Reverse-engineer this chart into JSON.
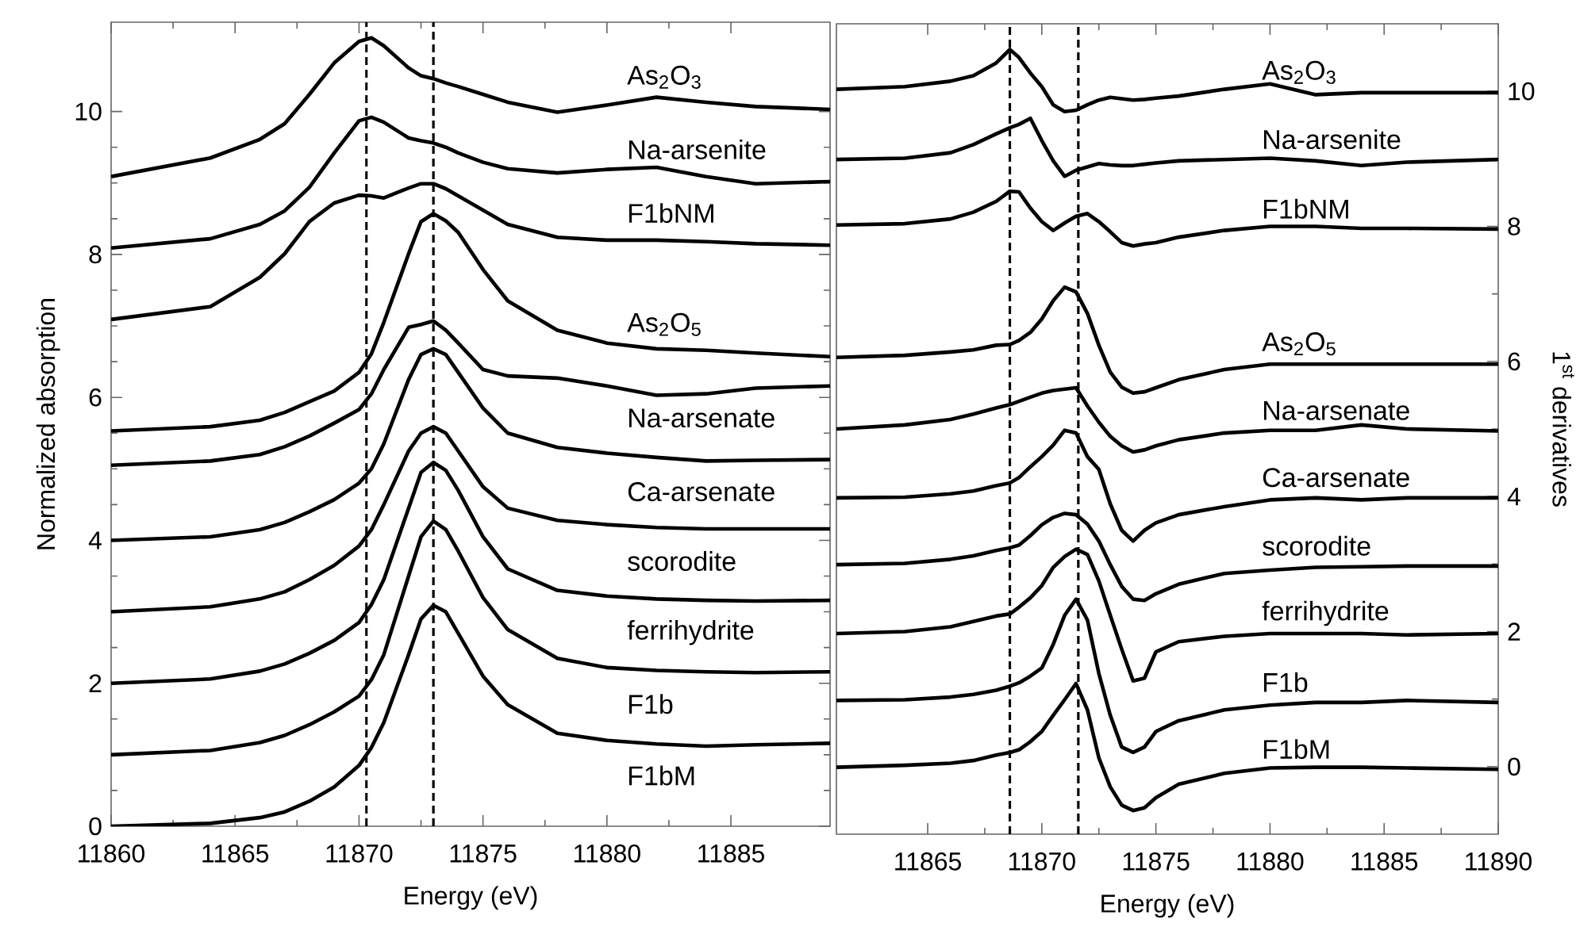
{
  "chart_data": [
    {
      "type": "line",
      "xlabel": "Energy (eV)",
      "ylabel": "Normalized absorption",
      "xlim": [
        11860,
        11889
      ],
      "ylim": [
        0,
        11.25
      ],
      "xticks": [
        11860,
        11865,
        11870,
        11875,
        11880,
        11885
      ],
      "yticks": [
        0,
        2,
        4,
        6,
        8,
        10
      ],
      "ref_lines": [
        {
          "axis": "x",
          "value": 11870.3,
          "line_style": "dashed",
          "color": "#000000"
        },
        {
          "axis": "x",
          "value": 11873.0,
          "line_style": "dashed",
          "color": "#000000"
        }
      ],
      "x": [
        11860,
        11864,
        11866,
        11867,
        11868,
        11869,
        11870,
        11870.5,
        11871,
        11872,
        11872.5,
        11873,
        11873.5,
        11874,
        11875,
        11876,
        11878,
        11880,
        11882,
        11884,
        11886,
        11889
      ],
      "series": [
        {
          "name": "As$_{2}$O$_{3}$",
          "color": "#000000",
          "values": [
            9.09,
            9.35,
            9.61,
            9.83,
            10.24,
            10.68,
            10.98,
            11.03,
            10.92,
            10.61,
            10.5,
            10.46,
            10.4,
            10.35,
            10.24,
            10.13,
            9.99,
            10.09,
            10.2,
            10.13,
            10.07,
            10.03
          ]
        },
        {
          "name": "Na-arsenite",
          "color": "#000000",
          "values": [
            8.09,
            8.22,
            8.42,
            8.61,
            8.94,
            9.42,
            9.87,
            9.92,
            9.85,
            9.63,
            9.59,
            9.56,
            9.5,
            9.42,
            9.29,
            9.2,
            9.14,
            9.19,
            9.22,
            9.09,
            8.99,
            9.02
          ]
        },
        {
          "name": "F1bNM",
          "color": "#000000",
          "values": [
            7.09,
            7.27,
            7.68,
            8.01,
            8.46,
            8.72,
            8.83,
            8.82,
            8.79,
            8.93,
            8.99,
            8.99,
            8.92,
            8.82,
            8.62,
            8.42,
            8.24,
            8.2,
            8.2,
            8.18,
            8.15,
            8.13
          ]
        },
        {
          "name": "As$_{2}$O$_{5}$",
          "color": "#000000",
          "values": [
            5.53,
            5.59,
            5.68,
            5.79,
            5.94,
            6.09,
            6.35,
            6.61,
            7.05,
            8.01,
            8.46,
            8.57,
            8.47,
            8.31,
            7.79,
            7.35,
            6.94,
            6.76,
            6.68,
            6.66,
            6.62,
            6.57
          ]
        },
        {
          "name": "Na-arsenate",
          "color": "#000000",
          "values": [
            5.05,
            5.11,
            5.2,
            5.31,
            5.46,
            5.64,
            5.83,
            6.05,
            6.39,
            6.98,
            7.02,
            7.07,
            6.94,
            6.76,
            6.39,
            6.3,
            6.27,
            6.16,
            6.03,
            6.05,
            6.13,
            6.16
          ]
        },
        {
          "name": "Ca-arsenate",
          "color": "#000000",
          "values": [
            4.0,
            4.05,
            4.15,
            4.25,
            4.4,
            4.57,
            4.8,
            5.0,
            5.35,
            6.25,
            6.6,
            6.68,
            6.6,
            6.35,
            5.85,
            5.5,
            5.3,
            5.22,
            5.16,
            5.11,
            5.12,
            5.13
          ]
        },
        {
          "name": "scorodite",
          "color": "#000000",
          "values": [
            3.0,
            3.07,
            3.18,
            3.28,
            3.45,
            3.65,
            3.92,
            4.15,
            4.5,
            5.25,
            5.5,
            5.59,
            5.5,
            5.25,
            4.75,
            4.45,
            4.28,
            4.22,
            4.18,
            4.16,
            4.16,
            4.16
          ]
        },
        {
          "name": "ferrihydrite",
          "color": "#000000",
          "values": [
            2.0,
            2.06,
            2.17,
            2.27,
            2.42,
            2.6,
            2.85,
            3.1,
            3.45,
            4.45,
            4.95,
            5.09,
            4.98,
            4.7,
            4.05,
            3.6,
            3.3,
            3.22,
            3.18,
            3.16,
            3.15,
            3.16
          ]
        },
        {
          "name": "F1b",
          "color": "#000000",
          "values": [
            1.0,
            1.06,
            1.17,
            1.27,
            1.42,
            1.6,
            1.82,
            2.05,
            2.4,
            3.5,
            4.05,
            4.27,
            4.15,
            3.85,
            3.2,
            2.75,
            2.35,
            2.22,
            2.18,
            2.16,
            2.15,
            2.16
          ]
        },
        {
          "name": "F1bM",
          "color": "#000000",
          "values": [
            0,
            0.04,
            0.12,
            0.2,
            0.35,
            0.55,
            0.85,
            1.1,
            1.45,
            2.4,
            2.9,
            3.09,
            3.0,
            2.7,
            2.1,
            1.7,
            1.3,
            1.2,
            1.15,
            1.12,
            1.14,
            1.16
          ]
        }
      ]
    },
    {
      "type": "line",
      "xlabel": "Energy (eV)",
      "y2label": "1$^{st}$ derivatives",
      "xlim": [
        11861,
        11890
      ],
      "y2lim": [
        -1,
        11
      ],
      "xticks": [
        11865,
        11870,
        11875,
        11880,
        11885,
        11890
      ],
      "y2ticks": [
        0,
        2,
        4,
        6,
        8,
        10
      ],
      "ref_lines": [
        {
          "axis": "x",
          "value": 11868.6,
          "line_style": "dashed",
          "color": "#000000"
        },
        {
          "axis": "x",
          "value": 11871.6,
          "line_style": "dashed",
          "color": "#000000"
        }
      ],
      "x": [
        11861,
        11864,
        11866,
        11867,
        11868,
        11868.6,
        11869,
        11869.5,
        11870,
        11870.5,
        11871,
        11871.5,
        11872,
        11872.5,
        11873,
        11873.5,
        11874,
        11874.5,
        11875,
        11876,
        11878,
        11880,
        11882,
        11884,
        11886,
        11890
      ],
      "series": [
        {
          "name": "As$_{2}$O$_{3}$",
          "color": "#000000",
          "axis": "y2",
          "values": [
            10.03,
            10.07,
            10.15,
            10.23,
            10.42,
            10.62,
            10.5,
            10.27,
            10.07,
            9.8,
            9.7,
            9.72,
            9.8,
            9.87,
            9.91,
            9.89,
            9.87,
            9.88,
            9.9,
            9.93,
            10.03,
            10.11,
            9.95,
            9.98,
            9.98,
            9.98
          ]
        },
        {
          "name": "Na-arsenite",
          "color": "#000000",
          "axis": "y2",
          "values": [
            8.99,
            9.01,
            9.09,
            9.21,
            9.37,
            9.46,
            9.51,
            9.6,
            9.27,
            8.97,
            8.74,
            8.83,
            8.88,
            8.93,
            8.91,
            8.9,
            8.9,
            8.92,
            8.94,
            8.97,
            8.99,
            9.01,
            8.97,
            8.9,
            8.95,
            8.99
          ]
        },
        {
          "name": "F1bNM",
          "color": "#000000",
          "axis": "y2",
          "values": [
            8.02,
            8.04,
            8.11,
            8.21,
            8.37,
            8.52,
            8.51,
            8.27,
            8.07,
            7.94,
            8.05,
            8.15,
            8.19,
            8.07,
            7.92,
            7.76,
            7.71,
            7.74,
            7.76,
            7.84,
            7.94,
            8.0,
            8.0,
            7.97,
            7.97,
            7.96
          ]
        },
        {
          "name": "As$_{2}$O$_{5}$",
          "color": "#000000",
          "axis": "y2",
          "values": [
            6.06,
            6.09,
            6.14,
            6.17,
            6.24,
            6.25,
            6.31,
            6.43,
            6.63,
            6.9,
            7.1,
            7.03,
            6.71,
            6.24,
            5.84,
            5.62,
            5.53,
            5.55,
            5.61,
            5.73,
            5.88,
            5.96,
            5.96,
            5.96,
            5.96,
            5.96
          ]
        },
        {
          "name": "Na-arsenate",
          "color": "#000000",
          "axis": "y2",
          "values": [
            5.0,
            5.06,
            5.14,
            5.22,
            5.31,
            5.36,
            5.41,
            5.47,
            5.53,
            5.57,
            5.59,
            5.61,
            5.34,
            5.1,
            4.89,
            4.75,
            4.66,
            4.69,
            4.75,
            4.84,
            4.94,
            4.98,
            4.98,
            5.06,
            5.0,
            4.97
          ]
        },
        {
          "name": "Ca-arsenate",
          "color": "#000000",
          "axis": "y2",
          "values": [
            3.98,
            3.99,
            4.04,
            4.08,
            4.16,
            4.2,
            4.28,
            4.44,
            4.59,
            4.76,
            4.98,
            4.94,
            4.59,
            4.4,
            3.89,
            3.5,
            3.34,
            3.5,
            3.61,
            3.73,
            3.85,
            3.95,
            3.98,
            3.95,
            3.98,
            3.98
          ]
        },
        {
          "name": "scorodite",
          "color": "#000000",
          "axis": "y2",
          "values": [
            2.99,
            3.01,
            3.07,
            3.12,
            3.2,
            3.24,
            3.28,
            3.42,
            3.58,
            3.69,
            3.75,
            3.73,
            3.59,
            3.34,
            2.99,
            2.67,
            2.48,
            2.46,
            2.56,
            2.7,
            2.86,
            2.91,
            2.95,
            2.96,
            2.97,
            2.97
          ]
        },
        {
          "name": "ferrihydrite",
          "color": "#000000",
          "axis": "y2",
          "values": [
            1.97,
            2.0,
            2.07,
            2.15,
            2.23,
            2.26,
            2.36,
            2.5,
            2.68,
            2.95,
            3.11,
            3.22,
            3.14,
            2.75,
            2.24,
            1.74,
            1.27,
            1.31,
            1.7,
            1.85,
            1.93,
            1.97,
            1.97,
            1.97,
            1.95,
            1.97
          ]
        },
        {
          "name": "F1b",
          "color": "#000000",
          "axis": "y2",
          "values": [
            0.98,
            0.99,
            1.03,
            1.07,
            1.13,
            1.19,
            1.24,
            1.34,
            1.46,
            1.81,
            2.24,
            2.48,
            2.17,
            1.38,
            0.76,
            0.29,
            0.21,
            0.29,
            0.52,
            0.68,
            0.84,
            0.91,
            0.95,
            0.95,
            0.98,
            0.95
          ]
        },
        {
          "name": "F1bM",
          "color": "#000000",
          "axis": "y2",
          "values": [
            -0.01,
            0.02,
            0.05,
            0.09,
            0.17,
            0.21,
            0.25,
            0.37,
            0.52,
            0.76,
            0.99,
            1.23,
            0.84,
            0.13,
            -0.3,
            -0.57,
            -0.65,
            -0.61,
            -0.46,
            -0.26,
            -0.1,
            -0.02,
            -0.01,
            -0.01,
            -0.02,
            -0.04
          ]
        }
      ]
    }
  ]
}
